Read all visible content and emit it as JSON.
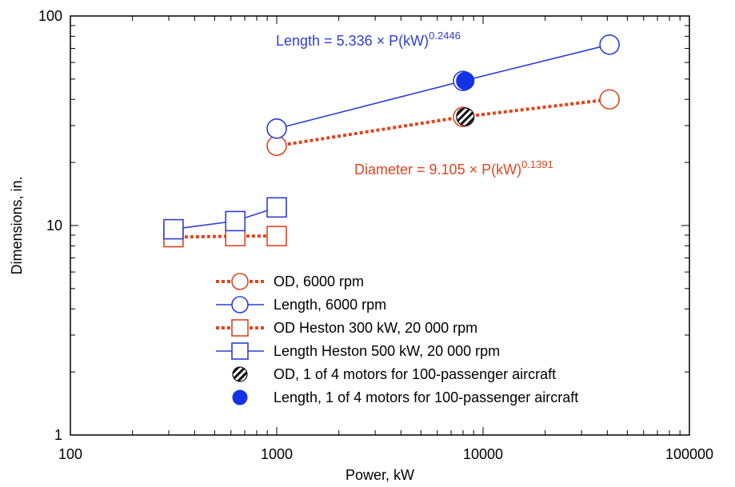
{
  "chart_data": {
    "type": "scatter",
    "xscale": "log",
    "yscale": "log",
    "xlim": [
      100,
      100000
    ],
    "ylim": [
      1,
      100
    ],
    "xlabel": "Power, kW",
    "ylabel": "Dimensions, in.",
    "xticks": [
      "100",
      "1000",
      "10000",
      "100000"
    ],
    "yticks": [
      "1",
      "10",
      "100"
    ],
    "grid": false,
    "legend_position": "bottom-right",
    "series": [
      {
        "name": "OD, 6000 rpm",
        "color": "#e0451f",
        "marker": "open-circle",
        "line": "dotted",
        "points": [
          [
            1000,
            24
          ],
          [
            8000,
            33
          ],
          [
            41000,
            40
          ]
        ]
      },
      {
        "name": "Length, 6000 rpm",
        "color": "#2d3fd3",
        "marker": "open-circle",
        "line": "solid",
        "points": [
          [
            1000,
            29
          ],
          [
            8000,
            49
          ],
          [
            41000,
            73
          ]
        ]
      },
      {
        "name": "OD Heston 300 kW, 20 000 rpm",
        "color": "#e0451f",
        "marker": "open-square",
        "line": "dotted",
        "points": [
          [
            316,
            8.8
          ],
          [
            630,
            8.9
          ],
          [
            1000,
            8.9
          ]
        ]
      },
      {
        "name": "Length Heston 500 kW, 20 000 rpm",
        "color": "#2d3fd3",
        "marker": "open-square",
        "line": "solid",
        "points": [
          [
            316,
            9.6
          ],
          [
            630,
            10.5
          ],
          [
            1000,
            12.2
          ]
        ]
      },
      {
        "name": "OD, 1 of 4 motors for 100-passenger aircraft",
        "color": "#1a1a1a",
        "marker": "hatched-circle",
        "line": "none",
        "points": [
          [
            8200,
            33
          ]
        ]
      },
      {
        "name": "Length, 1 of 4 motors for 100-passenger aircraft",
        "color": "#1432e6",
        "marker": "filled-circle",
        "line": "none",
        "points": [
          [
            8200,
            49
          ]
        ]
      }
    ],
    "annotations": [
      {
        "prefix": "Length = 5.336 × P(kW)",
        "exponent": "0.2446",
        "color": "#2d3fd3"
      },
      {
        "prefix": "Diameter = 9.105 × P(kW)",
        "exponent": "0.1391",
        "color": "#e0451f"
      }
    ]
  }
}
